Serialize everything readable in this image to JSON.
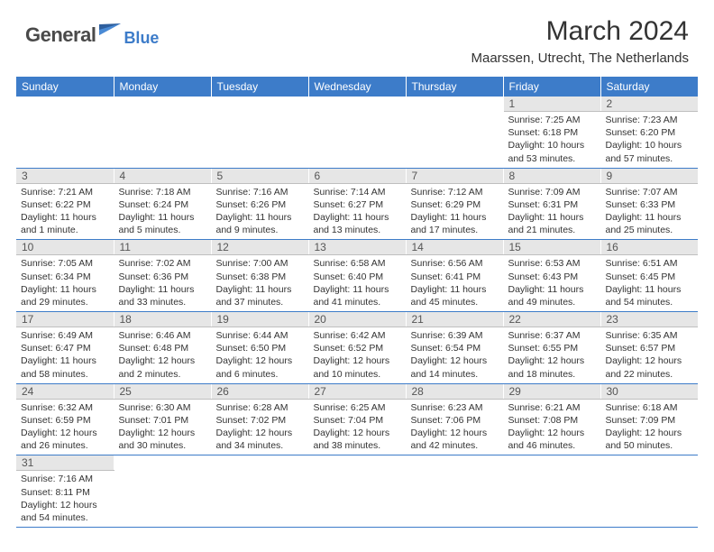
{
  "logo": {
    "main": "General",
    "sub": "Blue"
  },
  "title": "March 2024",
  "location": "Maarssen, Utrecht, The Netherlands",
  "colors": {
    "header_bg": "#3d7cc9",
    "header_text": "#ffffff",
    "daynum_bg": "#e6e6e6",
    "daynum_text": "#555555",
    "cell_text": "#333333",
    "rule": "#3d7cc9",
    "logo_main": "#4a4a4a",
    "logo_sub": "#3d7cc9"
  },
  "weekdays": [
    "Sunday",
    "Monday",
    "Tuesday",
    "Wednesday",
    "Thursday",
    "Friday",
    "Saturday"
  ],
  "weeks": [
    [
      null,
      null,
      null,
      null,
      null,
      {
        "n": "1",
        "sr": "7:25 AM",
        "ss": "6:18 PM",
        "dl": "10 hours and 53 minutes."
      },
      {
        "n": "2",
        "sr": "7:23 AM",
        "ss": "6:20 PM",
        "dl": "10 hours and 57 minutes."
      }
    ],
    [
      {
        "n": "3",
        "sr": "7:21 AM",
        "ss": "6:22 PM",
        "dl": "11 hours and 1 minute."
      },
      {
        "n": "4",
        "sr": "7:18 AM",
        "ss": "6:24 PM",
        "dl": "11 hours and 5 minutes."
      },
      {
        "n": "5",
        "sr": "7:16 AM",
        "ss": "6:26 PM",
        "dl": "11 hours and 9 minutes."
      },
      {
        "n": "6",
        "sr": "7:14 AM",
        "ss": "6:27 PM",
        "dl": "11 hours and 13 minutes."
      },
      {
        "n": "7",
        "sr": "7:12 AM",
        "ss": "6:29 PM",
        "dl": "11 hours and 17 minutes."
      },
      {
        "n": "8",
        "sr": "7:09 AM",
        "ss": "6:31 PM",
        "dl": "11 hours and 21 minutes."
      },
      {
        "n": "9",
        "sr": "7:07 AM",
        "ss": "6:33 PM",
        "dl": "11 hours and 25 minutes."
      }
    ],
    [
      {
        "n": "10",
        "sr": "7:05 AM",
        "ss": "6:34 PM",
        "dl": "11 hours and 29 minutes."
      },
      {
        "n": "11",
        "sr": "7:02 AM",
        "ss": "6:36 PM",
        "dl": "11 hours and 33 minutes."
      },
      {
        "n": "12",
        "sr": "7:00 AM",
        "ss": "6:38 PM",
        "dl": "11 hours and 37 minutes."
      },
      {
        "n": "13",
        "sr": "6:58 AM",
        "ss": "6:40 PM",
        "dl": "11 hours and 41 minutes."
      },
      {
        "n": "14",
        "sr": "6:56 AM",
        "ss": "6:41 PM",
        "dl": "11 hours and 45 minutes."
      },
      {
        "n": "15",
        "sr": "6:53 AM",
        "ss": "6:43 PM",
        "dl": "11 hours and 49 minutes."
      },
      {
        "n": "16",
        "sr": "6:51 AM",
        "ss": "6:45 PM",
        "dl": "11 hours and 54 minutes."
      }
    ],
    [
      {
        "n": "17",
        "sr": "6:49 AM",
        "ss": "6:47 PM",
        "dl": "11 hours and 58 minutes."
      },
      {
        "n": "18",
        "sr": "6:46 AM",
        "ss": "6:48 PM",
        "dl": "12 hours and 2 minutes."
      },
      {
        "n": "19",
        "sr": "6:44 AM",
        "ss": "6:50 PM",
        "dl": "12 hours and 6 minutes."
      },
      {
        "n": "20",
        "sr": "6:42 AM",
        "ss": "6:52 PM",
        "dl": "12 hours and 10 minutes."
      },
      {
        "n": "21",
        "sr": "6:39 AM",
        "ss": "6:54 PM",
        "dl": "12 hours and 14 minutes."
      },
      {
        "n": "22",
        "sr": "6:37 AM",
        "ss": "6:55 PM",
        "dl": "12 hours and 18 minutes."
      },
      {
        "n": "23",
        "sr": "6:35 AM",
        "ss": "6:57 PM",
        "dl": "12 hours and 22 minutes."
      }
    ],
    [
      {
        "n": "24",
        "sr": "6:32 AM",
        "ss": "6:59 PM",
        "dl": "12 hours and 26 minutes."
      },
      {
        "n": "25",
        "sr": "6:30 AM",
        "ss": "7:01 PM",
        "dl": "12 hours and 30 minutes."
      },
      {
        "n": "26",
        "sr": "6:28 AM",
        "ss": "7:02 PM",
        "dl": "12 hours and 34 minutes."
      },
      {
        "n": "27",
        "sr": "6:25 AM",
        "ss": "7:04 PM",
        "dl": "12 hours and 38 minutes."
      },
      {
        "n": "28",
        "sr": "6:23 AM",
        "ss": "7:06 PM",
        "dl": "12 hours and 42 minutes."
      },
      {
        "n": "29",
        "sr": "6:21 AM",
        "ss": "7:08 PM",
        "dl": "12 hours and 46 minutes."
      },
      {
        "n": "30",
        "sr": "6:18 AM",
        "ss": "7:09 PM",
        "dl": "12 hours and 50 minutes."
      }
    ],
    [
      {
        "n": "31",
        "sr": "7:16 AM",
        "ss": "8:11 PM",
        "dl": "12 hours and 54 minutes."
      },
      null,
      null,
      null,
      null,
      null,
      null
    ]
  ],
  "labels": {
    "sunrise": "Sunrise:",
    "sunset": "Sunset:",
    "daylight": "Daylight:"
  }
}
